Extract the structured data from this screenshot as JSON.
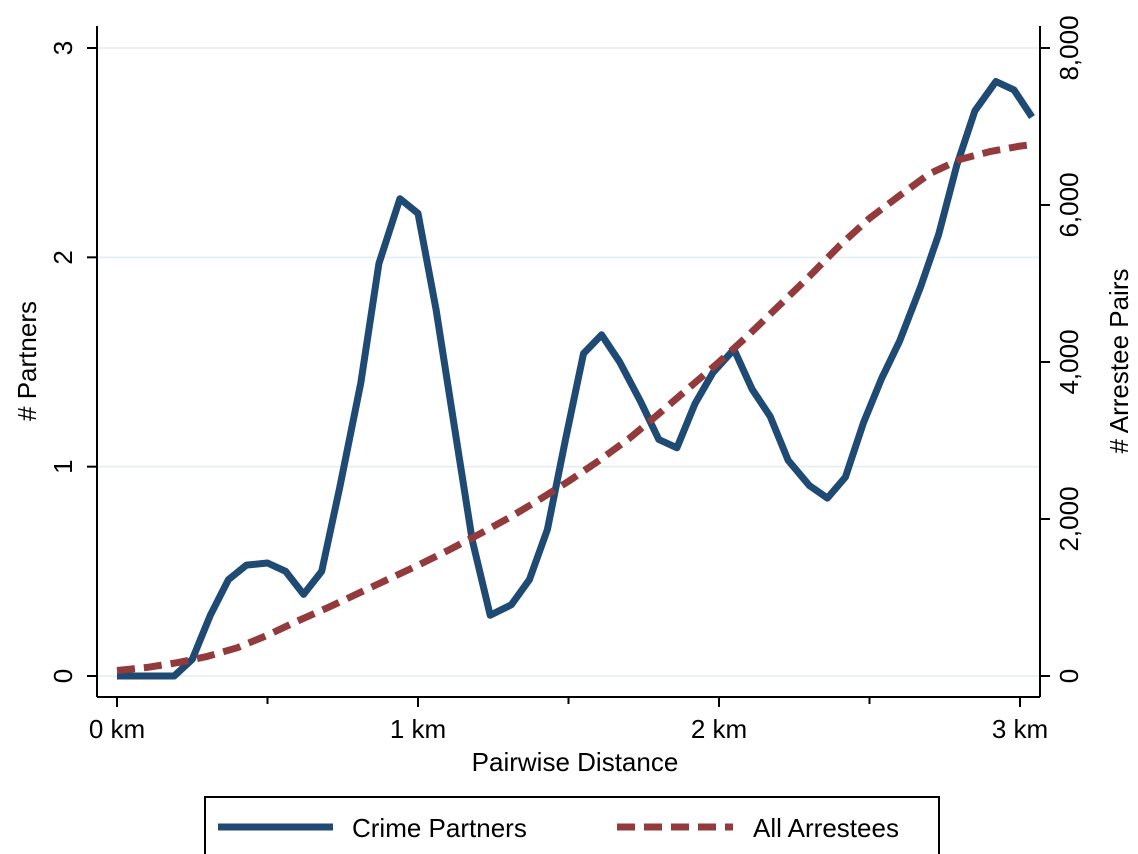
{
  "chart_data": {
    "type": "line",
    "xlabel": "Pairwise Distance",
    "ylabel_left": "# Partners",
    "ylabel_right": "# Arrestee Pairs",
    "xlim": [
      -0.1,
      3.1
    ],
    "ylim_left": [
      -0.1,
      3.15
    ],
    "ylim_right": [
      0,
      8400
    ],
    "x_ticks": [
      {
        "value": 0,
        "label": "0 km"
      },
      {
        "value": 1,
        "label": "1 km"
      },
      {
        "value": 2,
        "label": "2 km"
      },
      {
        "value": 3,
        "label": "3 km"
      }
    ],
    "x_minor_ticks": [
      0.5,
      1.5,
      2.5
    ],
    "y_left_ticks": [
      {
        "value": 0,
        "label": "0"
      },
      {
        "value": 1,
        "label": "1"
      },
      {
        "value": 2,
        "label": "2"
      },
      {
        "value": 3,
        "label": "3"
      }
    ],
    "y_right_ticks": [
      {
        "value": 0,
        "label": "0"
      },
      {
        "value": 2000,
        "label": "2,000"
      },
      {
        "value": 4000,
        "label": "4,000"
      },
      {
        "value": 6000,
        "label": "6,000"
      },
      {
        "value": 8000,
        "label": "8,000"
      }
    ],
    "grid": true,
    "legend_position": "bottom",
    "series": [
      {
        "name": "Crime Partners",
        "axis": "left",
        "color": "#1f4a73",
        "style": "solid",
        "x": [
          0,
          0.06,
          0.12,
          0.19,
          0.25,
          0.31,
          0.37,
          0.43,
          0.5,
          0.56,
          0.62,
          0.68,
          0.74,
          0.81,
          0.87,
          0.94,
          1.0,
          1.06,
          1.12,
          1.18,
          1.24,
          1.31,
          1.37,
          1.43,
          1.49,
          1.55,
          1.61,
          1.67,
          1.74,
          1.8,
          1.86,
          1.92,
          1.98,
          2.05,
          2.11,
          2.17,
          2.23,
          2.3,
          2.36,
          2.42,
          2.48,
          2.54,
          2.6,
          2.67,
          2.73,
          2.79,
          2.85,
          2.92,
          2.98,
          3.04
        ],
        "values": [
          0,
          0,
          0,
          0,
          0.08,
          0.29,
          0.46,
          0.53,
          0.54,
          0.5,
          0.39,
          0.5,
          0.9,
          1.4,
          1.97,
          2.28,
          2.21,
          1.75,
          1.2,
          0.65,
          0.29,
          0.34,
          0.46,
          0.7,
          1.13,
          1.54,
          1.63,
          1.5,
          1.31,
          1.13,
          1.09,
          1.3,
          1.45,
          1.56,
          1.37,
          1.24,
          1.03,
          0.91,
          0.85,
          0.95,
          1.21,
          1.42,
          1.6,
          1.86,
          2.11,
          2.44,
          2.7,
          2.84,
          2.8,
          2.67
        ]
      },
      {
        "name": "All Arrestees",
        "axis": "right",
        "color": "#933a3c",
        "style": "dashed",
        "x": [
          0,
          0.1,
          0.2,
          0.3,
          0.4,
          0.5,
          0.6,
          0.7,
          0.8,
          0.9,
          1.0,
          1.1,
          1.2,
          1.3,
          1.4,
          1.5,
          1.6,
          1.7,
          1.8,
          1.9,
          2.0,
          2.1,
          2.2,
          2.3,
          2.4,
          2.5,
          2.6,
          2.7,
          2.8,
          2.9,
          3.0,
          3.04
        ],
        "values": [
          70,
          110,
          170,
          250,
          360,
          520,
          700,
          870,
          1050,
          1230,
          1410,
          1600,
          1800,
          2010,
          2240,
          2480,
          2740,
          3020,
          3340,
          3670,
          4000,
          4350,
          4720,
          5090,
          5480,
          5830,
          6120,
          6400,
          6580,
          6680,
          6750,
          6770
        ]
      }
    ]
  }
}
